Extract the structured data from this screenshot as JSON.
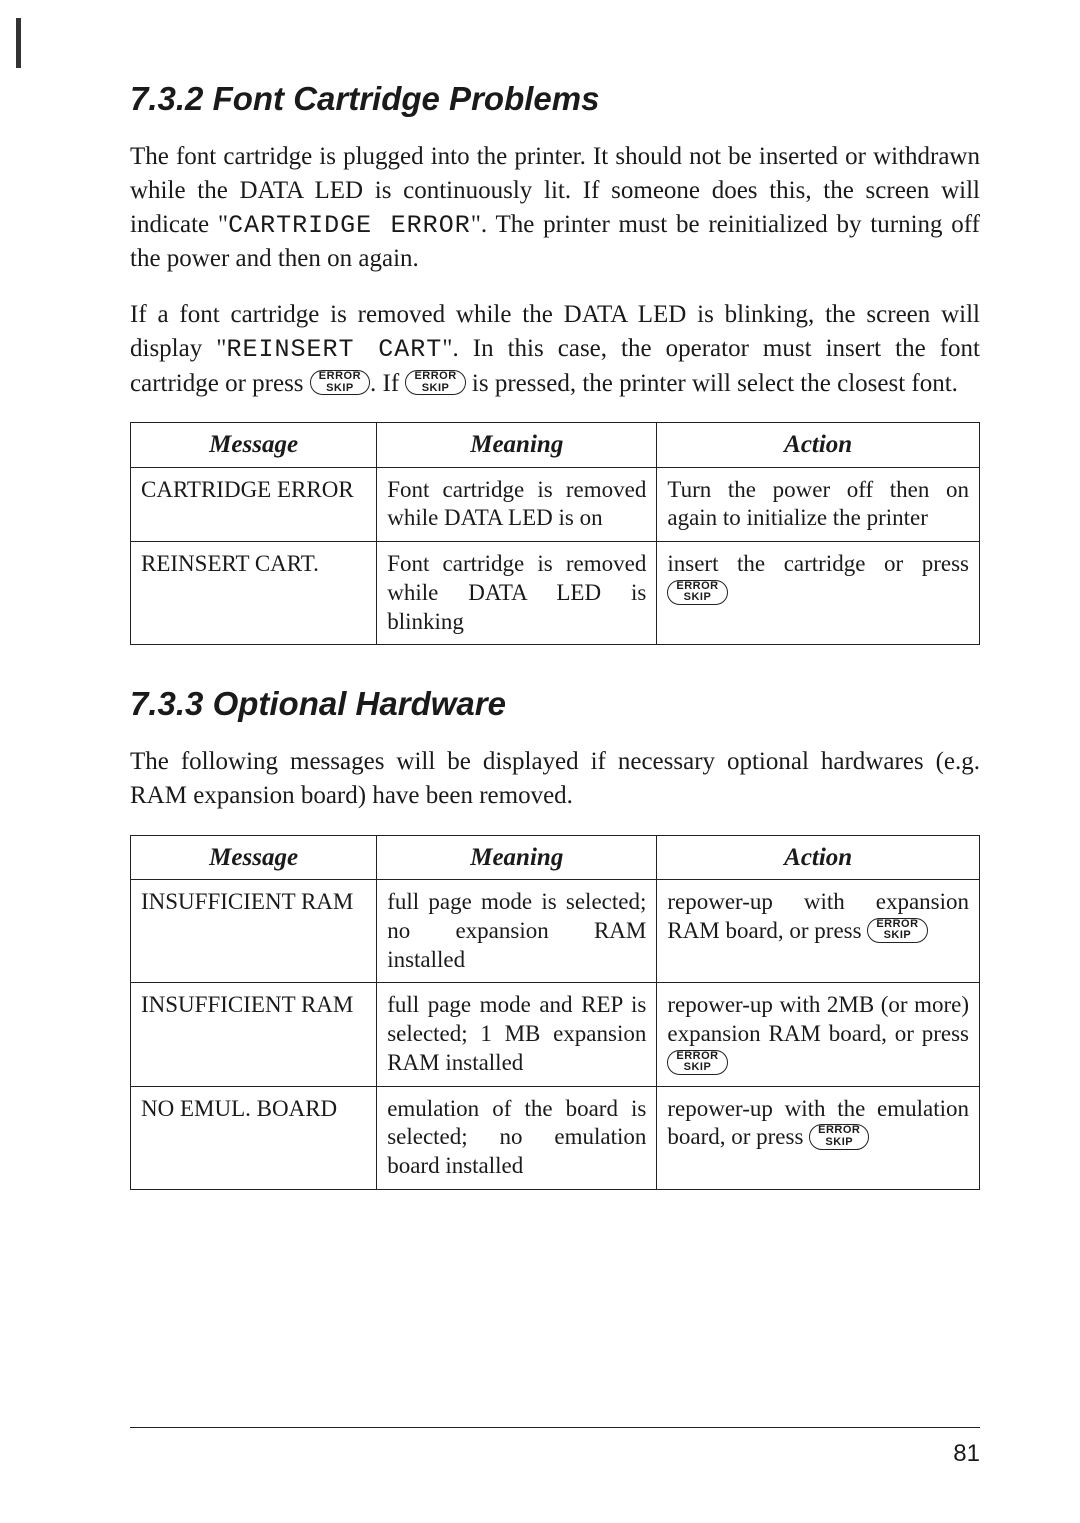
{
  "page_number": "81",
  "sections": [
    {
      "id": "s732",
      "heading": "7.3.2 Font Cartridge Problems",
      "para1_pre": "The font cartridge is plugged into the printer. It should not be inserted or withdrawn while the DATA LED is continuously lit. If someone does this, the screen will indicate \"",
      "para1_mono": "CARTRIDGE  ERROR",
      "para1_post": "\". The printer must be reinitialized by turning off the power and then on again.",
      "para2_pre": "If a font cartridge is removed while the DATA LED is blinking, the screen will display \"",
      "para2_mono": "REINSERT  CART",
      "para2_mid1": "\". In this case, the operator must insert the font cartridge or press ",
      "para2_mid2": ". If ",
      "para2_post": " is pressed, the printer will select the closest font.",
      "key_top": "ERROR",
      "key_bot": "SKIP",
      "table": {
        "headers": [
          "Message",
          "Meaning",
          "Action"
        ],
        "rows": [
          {
            "message": "CARTRIDGE ERROR",
            "meaning": "Font cartridge is removed while DATA LED is on",
            "action": "Turn the power off then on again to initialize the printer",
            "has_key": false
          },
          {
            "message": "REINSERT CART.",
            "meaning": "Font cartridge is removed while DATA LED is blinking",
            "action_pre": "insert the cartridge or press ",
            "has_key": true
          }
        ]
      }
    },
    {
      "id": "s733",
      "heading": "7.3.3 Optional Hardware",
      "para1": "The following messages will be displayed if necessary optional hardwares (e.g. RAM expansion board) have been removed.",
      "key_top": "ERROR",
      "key_bot": "SKIP",
      "table": {
        "headers": [
          "Message",
          "Meaning",
          "Action"
        ],
        "rows": [
          {
            "message": "INSUFFICIENT RAM",
            "meaning": "full page mode is selected; no expansion RAM installed",
            "action_pre": "repower-up with expansion RAM board, or press ",
            "has_key": true
          },
          {
            "message": "INSUFFICIENT RAM",
            "meaning": "full page mode and REP is selected; 1 MB expansion RAM installed",
            "action_pre": "repower-up with 2MB (or more) expansion RAM board, or press ",
            "has_key": true
          },
          {
            "message": "NO EMUL. BOARD",
            "meaning": "emulation of the board is selected; no emulation board installed",
            "action_pre": "repower-up with the emulation board, or press ",
            "has_key": true
          }
        ]
      }
    }
  ]
}
